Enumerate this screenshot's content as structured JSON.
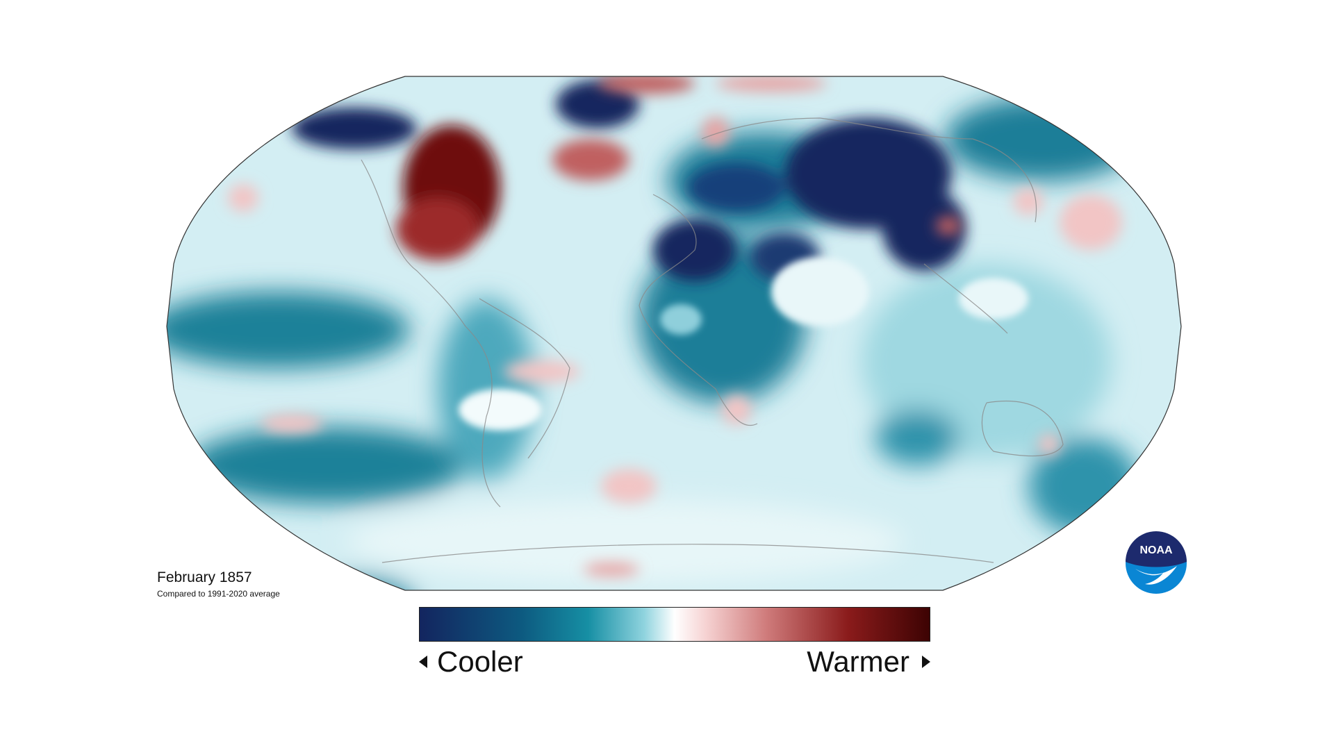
{
  "map": {
    "title": "February 1857",
    "subtitle": "Compared to 1991-2020 average",
    "projection": "Robinson"
  },
  "legend": {
    "low_label": "Cooler",
    "high_label": "Warmer",
    "colors": [
      "#13255f",
      "#0d6f88",
      "#73c6d4",
      "#f3fbfc",
      "#ffffff",
      "#f2c5c5",
      "#c06060",
      "#8a1b1b",
      "#4a0505"
    ]
  },
  "logo": {
    "text": "NOAA",
    "colors": {
      "navy": "#1d2a6d",
      "blue": "#0a86d4"
    }
  },
  "anomaly_colors": {
    "strong_cool": "#13255f",
    "cool": "#0d6f88",
    "mild_cool": "#5fb8c9",
    "faint_cool": "#c6e9ef",
    "neutral": "#f3fbfc",
    "mild_warm": "#f2c5c5",
    "warm": "#c06060",
    "strong_warm": "#6e0b0b"
  }
}
